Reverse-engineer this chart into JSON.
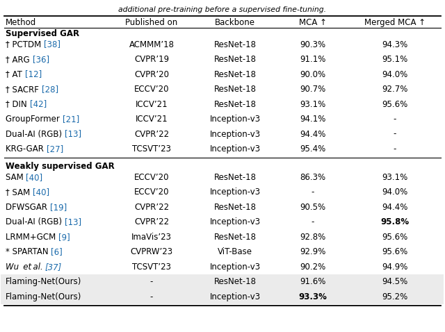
{
  "top_text": "additional pre-training before a supervised fine-tuning.",
  "col_headers": [
    "Method",
    "Published on",
    "Backbone",
    "MCA ↑",
    "Merged MCA ↑"
  ],
  "section1_header": "Supervised GAR",
  "section2_header": "Weakly supervised GAR",
  "supervised_rows": [
    {
      "method_plain": "† PCTDM ",
      "method_ref": "[38]",
      "published": "ACMMM’18",
      "backbone": "ResNet-18",
      "mca": "90.3%",
      "merged_mca": "94.3%",
      "bold_mca": false,
      "bold_merged": false,
      "italic": false,
      "shaded": false
    },
    {
      "method_plain": "† ARG ",
      "method_ref": "[36]",
      "published": "CVPR’19",
      "backbone": "ResNet-18",
      "mca": "91.1%",
      "merged_mca": "95.1%",
      "bold_mca": false,
      "bold_merged": false,
      "italic": false,
      "shaded": false
    },
    {
      "method_plain": "† AT ",
      "method_ref": "[12]",
      "published": "CVPR’20",
      "backbone": "ResNet-18",
      "mca": "90.0%",
      "merged_mca": "94.0%",
      "bold_mca": false,
      "bold_merged": false,
      "italic": false,
      "shaded": false
    },
    {
      "method_plain": "† SACRF ",
      "method_ref": "[28]",
      "published": "ECCV’20",
      "backbone": "ResNet-18",
      "mca": "90.7%",
      "merged_mca": "92.7%",
      "bold_mca": false,
      "bold_merged": false,
      "italic": false,
      "shaded": false
    },
    {
      "method_plain": "† DIN ",
      "method_ref": "[42]",
      "published": "ICCV’21",
      "backbone": "ResNet-18",
      "mca": "93.1%",
      "merged_mca": "95.6%",
      "bold_mca": false,
      "bold_merged": false,
      "italic": false,
      "shaded": false
    },
    {
      "method_plain": "GroupFormer ",
      "method_ref": "[21]",
      "published": "ICCV’21",
      "backbone": "Inception-v3",
      "mca": "94.1%",
      "merged_mca": "-",
      "bold_mca": false,
      "bold_merged": false,
      "italic": false,
      "shaded": false
    },
    {
      "method_plain": "Dual-AI (RGB) ",
      "method_ref": "[13]",
      "published": "CVPR’22",
      "backbone": "Inception-v3",
      "mca": "94.4%",
      "merged_mca": "-",
      "bold_mca": false,
      "bold_merged": false,
      "italic": false,
      "shaded": false
    },
    {
      "method_plain": "KRG-GAR ",
      "method_ref": "[27]",
      "published": "TCSVT’23",
      "backbone": "Inception-v3",
      "mca": "95.4%",
      "merged_mca": "-",
      "bold_mca": false,
      "bold_merged": false,
      "italic": false,
      "shaded": false
    }
  ],
  "weakly_rows": [
    {
      "method_plain": "SAM ",
      "method_ref": "[40]",
      "published": "ECCV’20",
      "backbone": "ResNet-18",
      "mca": "86.3%",
      "merged_mca": "93.1%",
      "bold_mca": false,
      "bold_merged": false,
      "italic": false,
      "shaded": false
    },
    {
      "method_plain": "† SAM ",
      "method_ref": "[40]",
      "published": "ECCV’20",
      "backbone": "Inception-v3",
      "mca": "-",
      "merged_mca": "94.0%",
      "bold_mca": false,
      "bold_merged": false,
      "italic": false,
      "shaded": false
    },
    {
      "method_plain": "DFWSGAR ",
      "method_ref": "[19]",
      "published": "CVPR’22",
      "backbone": "ResNet-18",
      "mca": "90.5%",
      "merged_mca": "94.4%",
      "bold_mca": false,
      "bold_merged": false,
      "italic": false,
      "shaded": false
    },
    {
      "method_plain": "Dual-AI (RGB) ",
      "method_ref": "[13]",
      "published": "CVPR’22",
      "backbone": "Inception-v3",
      "mca": "-",
      "merged_mca": "95.8%",
      "bold_mca": false,
      "bold_merged": true,
      "italic": false,
      "shaded": false
    },
    {
      "method_plain": "LRMM+GCM ",
      "method_ref": "[9]",
      "published": "ImaVis’23",
      "backbone": "ResNet-18",
      "mca": "92.8%",
      "merged_mca": "95.6%",
      "bold_mca": false,
      "bold_merged": false,
      "italic": false,
      "shaded": false
    },
    {
      "method_plain": "* SPARTAN ",
      "method_ref": "[6]",
      "published": "CVPRW’23",
      "backbone": "ViT-Base",
      "mca": "92.9%",
      "merged_mca": "95.6%",
      "bold_mca": false,
      "bold_merged": false,
      "italic": false,
      "shaded": false
    },
    {
      "method_plain": "Wu  et al. ",
      "method_ref": "[37]",
      "published": "TCSVT’23",
      "backbone": "Inception-v3",
      "mca": "90.2%",
      "merged_mca": "94.9%",
      "bold_mca": false,
      "bold_merged": false,
      "italic": true,
      "shaded": false
    },
    {
      "method_plain": "Flaming-Net(Ours)",
      "method_ref": "",
      "published": "-",
      "backbone": "ResNet-18",
      "mca": "91.6%",
      "merged_mca": "94.5%",
      "bold_mca": false,
      "bold_merged": false,
      "italic": false,
      "shaded": true
    },
    {
      "method_plain": "Flaming-Net(Ours)",
      "method_ref": "",
      "published": "-",
      "backbone": "Inception-v3",
      "mca": "93.3%",
      "merged_mca": "95.2%",
      "bold_mca": true,
      "bold_merged": false,
      "italic": false,
      "shaded": true
    }
  ],
  "ref_color": "#1a6aab",
  "shaded_color": "#ebebeb"
}
